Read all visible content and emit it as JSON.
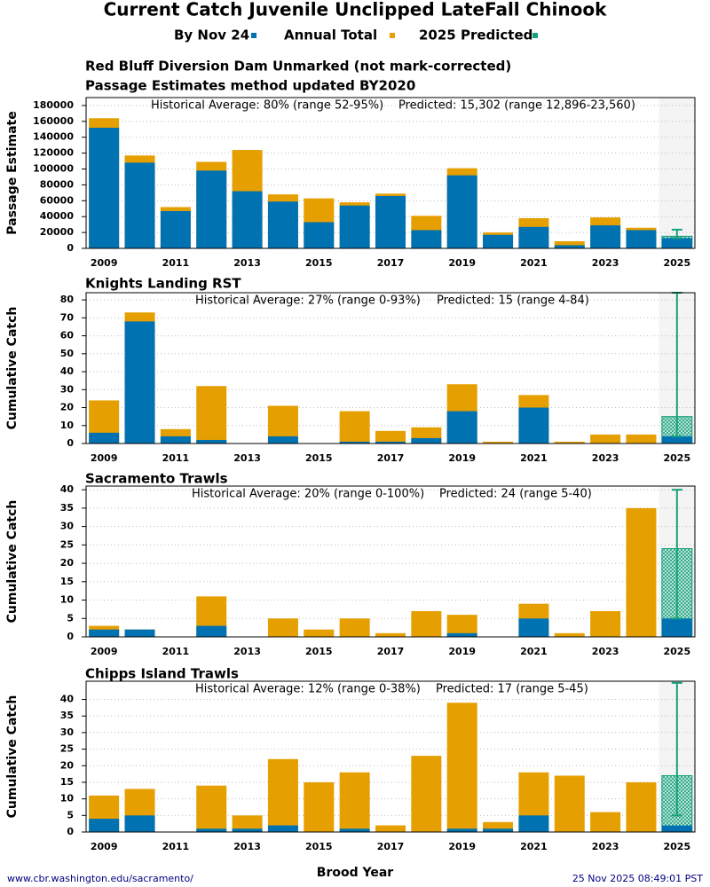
{
  "title": "Current Catch Juvenile Unclipped LateFall Chinook",
  "x_label": "Brood Year",
  "footer_left": "www.cbr.washington.edu/sacramento/",
  "footer_right": "25 Nov 2025 08:49:01 PST",
  "chart_data": [
    {
      "type": "bar",
      "title": "Red Bluff Diversion Dam Unmarked (not mark-corrected)",
      "subtitle": "Passage Estimates method updated BY2020",
      "y_label": "Passage Estimate",
      "annotations": [
        "Historical Average: 80% (range 52-95%)",
        "Predicted: 15,302 (range 12,896-23,560)"
      ],
      "categories": [
        "2009",
        null,
        "2011",
        null,
        "2013",
        null,
        "2015",
        null,
        "2017",
        null,
        "2019",
        null,
        "2021",
        null,
        "2023",
        null,
        "2025"
      ],
      "series": [
        {
          "name": "By Nov 24",
          "color": "#0072b2",
          "values": [
            152000,
            108000,
            47000,
            98000,
            72000,
            59000,
            33000,
            54000,
            66000,
            23000,
            92000,
            17000,
            27000,
            4000,
            29000,
            23000,
            13000
          ]
        },
        {
          "name": "Annual Total",
          "color": "#e69f00",
          "values": [
            164000,
            117000,
            52000,
            109000,
            124000,
            68000,
            63000,
            58000,
            69000,
            41000,
            101000,
            20000,
            38000,
            9000,
            39000,
            26000,
            null
          ]
        }
      ],
      "predicted": {
        "name": "2025 Predicted",
        "color": "#16a07c",
        "value": 15302,
        "low": 12896,
        "high": 23560
      },
      "ylim": [
        0,
        190000
      ],
      "yticks": [
        0,
        20000,
        40000,
        60000,
        80000,
        100000,
        120000,
        140000,
        160000,
        180000
      ],
      "grid": true
    },
    {
      "type": "bar",
      "title": "Knights Landing RST",
      "y_label": "Cumulative Catch",
      "annotations": [
        "Historical Average: 27% (range 0-93%)",
        "Predicted: 15 (range 4-84)"
      ],
      "categories": [
        "2009",
        null,
        "2011",
        null,
        "2013",
        null,
        "2015",
        null,
        "2017",
        null,
        "2019",
        null,
        "2021",
        null,
        "2023",
        null,
        "2025"
      ],
      "series": [
        {
          "values": [
            6,
            68,
            4,
            2,
            0,
            4,
            0,
            1,
            1,
            3,
            18,
            0,
            20,
            0,
            0,
            0,
            4
          ]
        },
        {
          "values": [
            24,
            73,
            8,
            32,
            0,
            21,
            0,
            18,
            7,
            9,
            33,
            1,
            27,
            1,
            5,
            5,
            null
          ]
        }
      ],
      "predicted": {
        "value": 15,
        "low": 4,
        "high": 84
      },
      "ylim": [
        0,
        84
      ],
      "yticks": [
        0,
        10,
        20,
        30,
        40,
        50,
        60,
        70,
        80
      ],
      "grid": true
    },
    {
      "type": "bar",
      "title": "Sacramento Trawls",
      "y_label": "Cumulative Catch",
      "annotations": [
        "Historical Average: 20% (range 0-100%)",
        "Predicted: 24 (range 5-40)"
      ],
      "categories": [
        "2009",
        null,
        "2011",
        null,
        "2013",
        null,
        "2015",
        null,
        "2017",
        null,
        "2019",
        null,
        "2021",
        null,
        "2023",
        null,
        "2025"
      ],
      "series": [
        {
          "values": [
            2,
            2,
            0,
            3,
            0,
            0,
            0,
            0,
            0,
            0,
            1,
            0,
            5,
            0,
            0,
            0,
            5
          ]
        },
        {
          "values": [
            3,
            2,
            0,
            11,
            0,
            5,
            2,
            5,
            1,
            7,
            6,
            0,
            9,
            1,
            7,
            35,
            null
          ]
        }
      ],
      "predicted": {
        "value": 24,
        "low": 5,
        "high": 40
      },
      "ylim": [
        0,
        41
      ],
      "yticks": [
        0,
        5,
        10,
        15,
        20,
        25,
        30,
        35,
        40
      ],
      "grid": true
    },
    {
      "type": "bar",
      "title": "Chipps Island Trawls",
      "y_label": "Cumulative Catch",
      "annotations": [
        "Historical Average: 12% (range 0-38%)",
        "Predicted: 17 (range 5-45)"
      ],
      "categories": [
        "2009",
        null,
        "2011",
        null,
        "2013",
        null,
        "2015",
        null,
        "2017",
        null,
        "2019",
        null,
        "2021",
        null,
        "2023",
        null,
        "2025"
      ],
      "series": [
        {
          "values": [
            4,
            5,
            0,
            1,
            1,
            2,
            0,
            1,
            0,
            0,
            1,
            1,
            5,
            0,
            0,
            0,
            2
          ]
        },
        {
          "values": [
            11,
            13,
            0,
            14,
            5,
            22,
            15,
            18,
            2,
            23,
            39,
            3,
            18,
            17,
            6,
            15,
            null
          ]
        }
      ],
      "predicted": {
        "value": 17,
        "low": 5,
        "high": 45
      },
      "ylim": [
        0,
        45.5
      ],
      "yticks": [
        0,
        5,
        10,
        15,
        20,
        25,
        30,
        35,
        40
      ],
      "grid": true
    }
  ]
}
